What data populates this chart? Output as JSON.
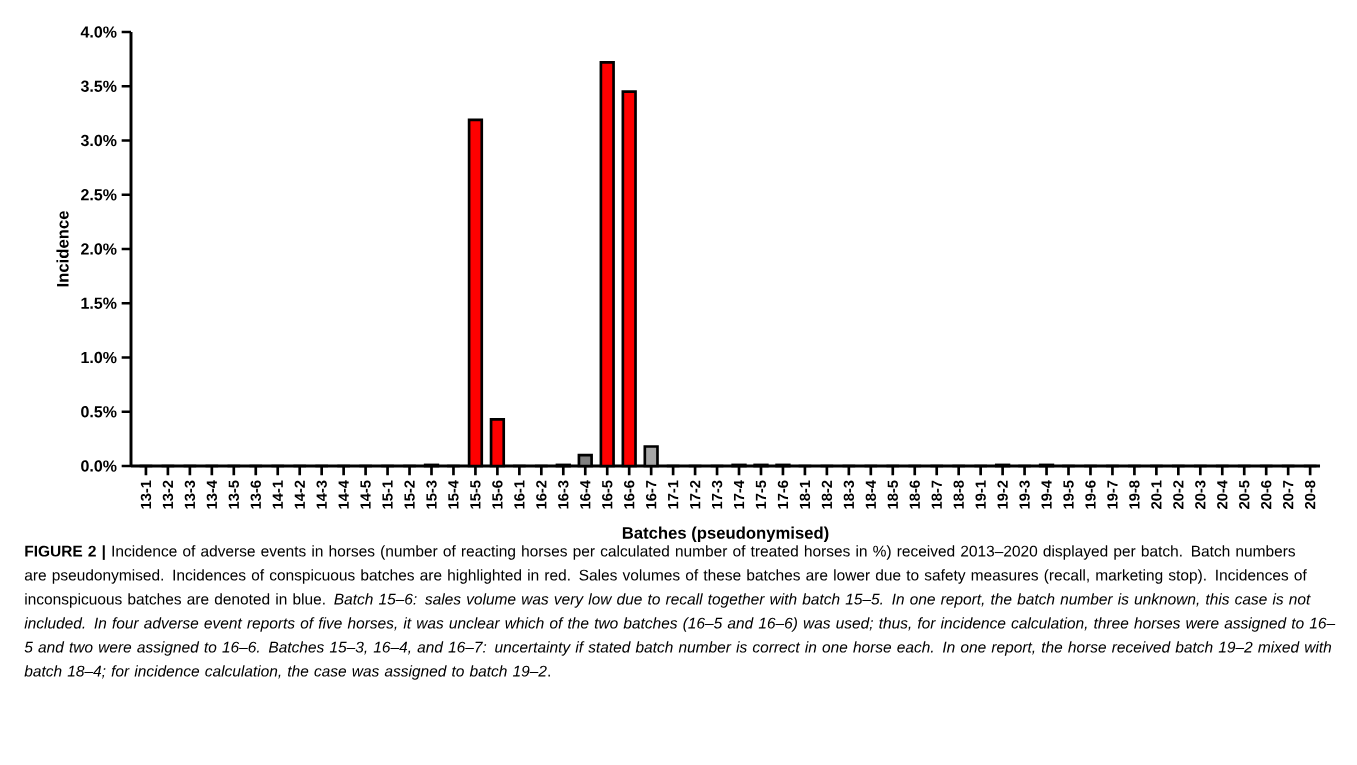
{
  "chart_data": {
    "type": "bar",
    "xlabel": "Batches (pseudonymised)",
    "ylabel": "Incidence",
    "categories": [
      "13-1",
      "13-2",
      "13-3",
      "13-4",
      "13-5",
      "13-6",
      "14-1",
      "14-2",
      "14-3",
      "14-4",
      "14-5",
      "15-1",
      "15-2",
      "15-3",
      "15-4",
      "15-5",
      "15-6",
      "16-1",
      "16-2",
      "16-3",
      "16-4",
      "16-5",
      "16-6",
      "16-7",
      "17-1",
      "17-2",
      "17-3",
      "17-4",
      "17-5",
      "17-6",
      "18-1",
      "18-2",
      "18-3",
      "18-4",
      "18-5",
      "18-6",
      "18-7",
      "18-8",
      "19-1",
      "19-2",
      "19-3",
      "19-4",
      "19-5",
      "19-6",
      "19-7",
      "19-8",
      "20-1",
      "20-2",
      "20-3",
      "20-4",
      "20-5",
      "20-6",
      "20-7",
      "20-8"
    ],
    "values": [
      0,
      0,
      0,
      0,
      0,
      0,
      0,
      0,
      0,
      0,
      0,
      0,
      0,
      0.01,
      0,
      3.19,
      0.43,
      0,
      0,
      0.01,
      0.1,
      3.72,
      3.45,
      0.18,
      0,
      0,
      0,
      0.01,
      0.01,
      0.01,
      0,
      0,
      0,
      0,
      0,
      0,
      0,
      0,
      0,
      0.01,
      0,
      0.01,
      0,
      0,
      0,
      0,
      0,
      0,
      0,
      0,
      0,
      0,
      0,
      0
    ],
    "colors": [
      "#808080",
      "#808080",
      "#808080",
      "#808080",
      "#808080",
      "#808080",
      "#808080",
      "#808080",
      "#808080",
      "#808080",
      "#808080",
      "#808080",
      "#808080",
      "#808080",
      "#808080",
      "#ff0000",
      "#ff0000",
      "#808080",
      "#808080",
      "#808080",
      "#808080",
      "#ff0000",
      "#ff0000",
      "#a6a6a6",
      "#808080",
      "#808080",
      "#808080",
      "#808080",
      "#808080",
      "#808080",
      "#808080",
      "#808080",
      "#808080",
      "#808080",
      "#808080",
      "#808080",
      "#808080",
      "#808080",
      "#808080",
      "#808080",
      "#808080",
      "#808080",
      "#808080",
      "#808080",
      "#808080",
      "#808080",
      "#808080",
      "#808080",
      "#808080",
      "#808080",
      "#808080",
      "#808080",
      "#808080",
      "#808080"
    ],
    "ylim": [
      0,
      4
    ],
    "yticks": [
      {
        "value": 0,
        "label": "0.0%"
      },
      {
        "value": 0.5,
        "label": "0.5%"
      },
      {
        "value": 1,
        "label": "1.0%"
      },
      {
        "value": 1.5,
        "label": "1.5%"
      },
      {
        "value": 2,
        "label": "2.0%"
      },
      {
        "value": 2.5,
        "label": "2.5%"
      },
      {
        "value": 3,
        "label": "3.0%"
      },
      {
        "value": 3.5,
        "label": "3.5%"
      },
      {
        "value": 4,
        "label": "4.0%"
      }
    ],
    "annotations": [
      "**FIGURE 2 |** Incidence of adverse events in horses (number of reacting horses per calculated number of treated horses in %) received 2013–2020 displayed per batch. Batch numbers are pseudonymised. Incidences of conspicuous batches are highlighted in red. Sales volumes of these batches are lower due to safety measures (recall, marketing stop). Incidences of inconspicuous batches are denoted in blue. *Batch 15–6: sales volume was very low due to recall together with batch 15–5. In one report, the batch number is unknown, this case is not included. In four adverse event reports of five horses, it was unclear which of the two batches (16–5 and 16–6) was used; thus, for incidence calculation, three horses were assigned to 16–5 and two were assigned to 16–6. Batches 15–3, 16–4, and 16–7: uncertainty if stated batch number is correct in one horse each. In one report, the horse received batch 19–2 mixed with batch 18–4; for incidence calculation, the case was assigned to batch 19–2*."
    ]
  }
}
